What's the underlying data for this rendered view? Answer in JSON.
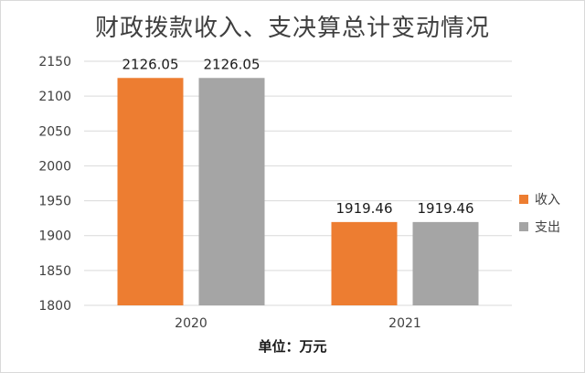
{
  "chart_data": {
    "type": "bar",
    "title": "财政拨款收入、支决算总计变动情况",
    "categories": [
      "2020",
      "2021"
    ],
    "series": [
      {
        "name": "收入",
        "color": "#ed7d31",
        "values": [
          2126.05,
          1919.46
        ]
      },
      {
        "name": "支出",
        "color": "#a5a5a5",
        "values": [
          2126.05,
          1919.46
        ]
      }
    ],
    "data_labels": [
      [
        "2126.05",
        "1919.46"
      ],
      [
        "2126.05",
        "1919.46"
      ]
    ],
    "y_ticks": [
      "1800",
      "1850",
      "1900",
      "1950",
      "2000",
      "2050",
      "2100",
      "2150"
    ],
    "ylim": [
      1800,
      2150
    ],
    "grid": true,
    "legend": "right",
    "unit_note": "单位：万元"
  }
}
